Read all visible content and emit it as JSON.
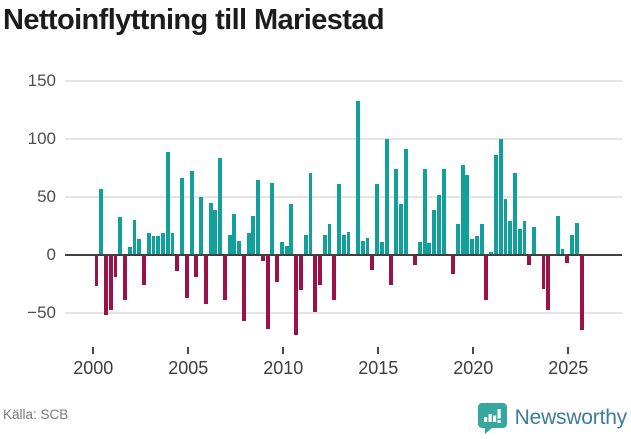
{
  "title": "Nettoinflyttning till Mariestad",
  "source": "Källa: SCB",
  "brand": {
    "name": "Newsworthy",
    "badge_color": "#35A79F",
    "text_color": "#3E7D97"
  },
  "colors": {
    "positive": "#12A19A",
    "negative": "#9B1148",
    "gridline": "#E4E4E4",
    "zero_line": "#404040",
    "axis_text": "#4D4D4D"
  },
  "chart_data": {
    "type": "bar",
    "title": "Nettoinflyttning till Mariestad",
    "frequency": "quarterly",
    "start_year": 2000,
    "start_quarter": 1,
    "values": [
      -27,
      57,
      -52,
      -47,
      -19,
      33,
      -39,
      7,
      30,
      14,
      -26,
      19,
      16,
      16,
      19,
      89,
      19,
      -14,
      66,
      -37,
      72,
      -19,
      50,
      -42,
      45,
      39,
      84,
      -39,
      17,
      35,
      12,
      -57,
      19,
      34,
      65,
      -5,
      -64,
      62,
      -23,
      11,
      8,
      44,
      -69,
      -30,
      17,
      71,
      -49,
      -26,
      17,
      27,
      -39,
      61,
      17,
      20,
      1,
      133,
      12,
      15,
      -13,
      61,
      11,
      100,
      -26,
      74,
      44,
      91,
      1,
      -9,
      11,
      74,
      10,
      39,
      52,
      74,
      1,
      -16,
      27,
      78,
      69,
      14,
      16,
      27,
      -39,
      3,
      86,
      100,
      48,
      29,
      71,
      22,
      29,
      -9,
      24,
      -1,
      -29,
      -47,
      1,
      34,
      5,
      -7,
      17,
      28,
      -65
    ],
    "y_ticks": [
      150,
      100,
      50,
      0,
      -50
    ],
    "y_tick_labels": [
      "150",
      "100",
      "50",
      "0",
      "−50"
    ],
    "x_tick_years": [
      2000,
      2005,
      2010,
      2015,
      2020,
      2025
    ],
    "x_tick_labels": [
      "2000",
      "2005",
      "2010",
      "2015",
      "2020",
      "2025"
    ],
    "ylim": [
      -75,
      160
    ],
    "grid": true,
    "legend": false
  }
}
